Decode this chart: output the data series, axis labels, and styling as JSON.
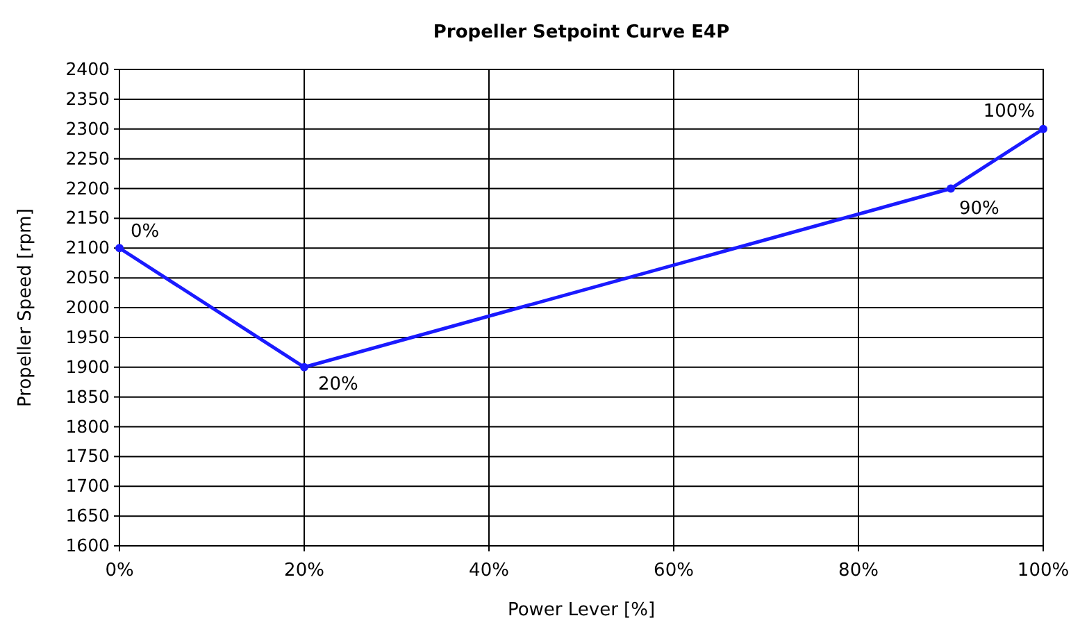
{
  "chart_data": {
    "type": "line",
    "title": "Propeller Setpoint Curve E4P",
    "xlabel": "Power Lever [%]",
    "ylabel": "Propeller Speed [rpm]",
    "x": [
      0,
      20,
      90,
      100
    ],
    "series": [
      {
        "color": "#1a1aff",
        "values": [
          2100,
          1900,
          2200,
          2300
        ]
      }
    ],
    "xlim": [
      0,
      100
    ],
    "xticks": [
      {
        "value": 0,
        "label": "0%"
      },
      {
        "value": 20,
        "label": "20%"
      },
      {
        "value": 40,
        "label": "40%"
      },
      {
        "value": 60,
        "label": "60%"
      },
      {
        "value": 80,
        "label": "80%"
      },
      {
        "value": 100,
        "label": "100%"
      }
    ],
    "ylim": [
      1600,
      2400
    ],
    "yticks": [
      1600,
      1650,
      1700,
      1750,
      1800,
      1850,
      1900,
      1950,
      2000,
      2050,
      2100,
      2150,
      2200,
      2250,
      2300,
      2350,
      2400
    ],
    "grid": true,
    "marker": "circle",
    "line_style": "solid",
    "annotations": [
      {
        "text": "0%",
        "x": 0,
        "y": 2100
      },
      {
        "text": "20%",
        "x": 20,
        "y": 1900
      },
      {
        "text": "90%",
        "x": 90,
        "y": 2200
      },
      {
        "text": "100%",
        "x": 100,
        "y": 2300
      }
    ]
  }
}
